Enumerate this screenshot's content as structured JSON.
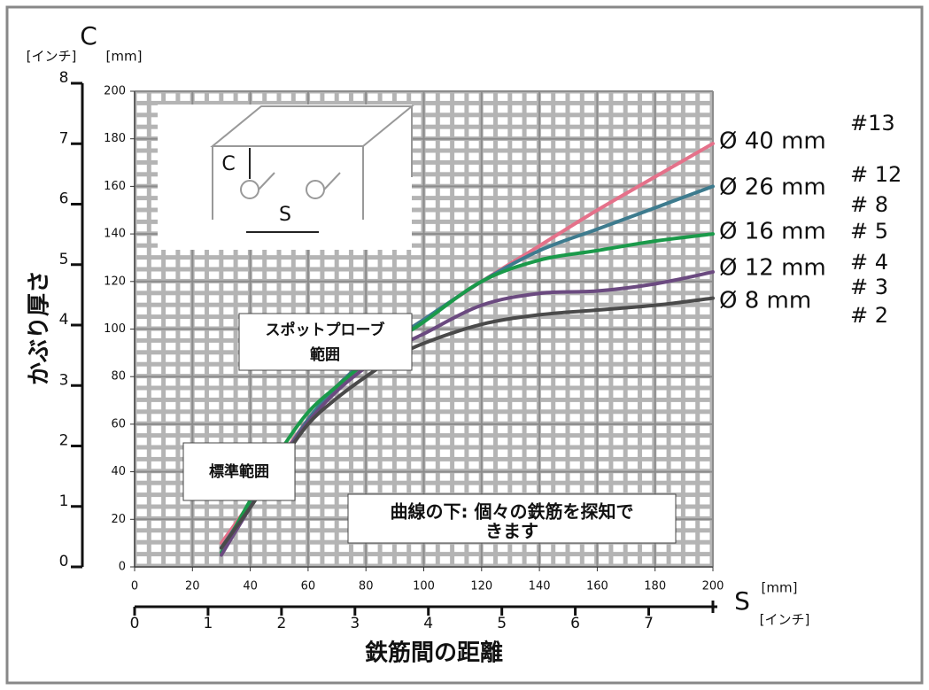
{
  "chart_data": {
    "type": "line",
    "y_label": "かぶり厚さ",
    "x_label": "鉄筋間の距離",
    "y_symbol": "C",
    "y_unit_inch": "[インチ]",
    "y_unit_mm": "[mm]",
    "x_symbol": "S",
    "x_unit_mm": "[mm]",
    "x_unit_inch": "[インチ]",
    "x": [
      30,
      40,
      50,
      60,
      70,
      80,
      90,
      100,
      120,
      140,
      160,
      180,
      200
    ],
    "series": [
      {
        "name": "Ø 40 mm",
        "color": "#e5718a",
        "values": [
          10,
          27,
          45,
          62,
          76,
          87,
          96,
          104,
          120,
          135,
          150,
          164,
          178
        ]
      },
      {
        "name": "Ø 26 mm",
        "color": "#3d7b8e",
        "values": [
          8,
          26,
          44,
          62,
          76,
          87,
          96,
          104,
          120,
          133,
          142,
          151,
          160
        ]
      },
      {
        "name": "Ø 16 mm",
        "color": "#1a9a4a",
        "values": [
          6,
          28,
          48,
          65,
          76,
          86,
          95,
          103,
          120,
          129,
          133,
          137,
          140
        ]
      },
      {
        "name": "Ø 12 mm",
        "color": "#6b4a80",
        "values": [
          5,
          25,
          44,
          61,
          74,
          84,
          92,
          98,
          110,
          115,
          116,
          119,
          124
        ]
      },
      {
        "name": "Ø 8 mm",
        "color": "#4a4a4a",
        "values": [
          8,
          25,
          43,
          60,
          71,
          80,
          88,
          94,
          102,
          106,
          108,
          110,
          113
        ]
      }
    ],
    "rebar_numbers": [
      "#13",
      "# 12",
      "# 8",
      "# 5",
      "# 4",
      "# 3",
      "# 2"
    ],
    "xlim": [
      0,
      200
    ],
    "xticks": [
      0,
      20,
      40,
      60,
      80,
      100,
      120,
      140,
      160,
      180,
      200
    ],
    "ylim": [
      0,
      200
    ],
    "yticks": [
      0,
      20,
      40,
      60,
      80,
      100,
      120,
      140,
      160,
      180,
      200
    ],
    "x2lim": [
      0,
      7.874
    ],
    "x2ticks": [
      0,
      1,
      2,
      3,
      4,
      5,
      6,
      7
    ],
    "y2lim": [
      0,
      8
    ],
    "y2ticks": [
      0,
      1,
      2,
      3,
      4,
      5,
      6,
      7,
      8
    ],
    "grid": true,
    "inset_labels": [
      "C",
      "S"
    ],
    "annotations": [
      {
        "lines": [
          "スポットプローブ",
          "範囲"
        ]
      },
      {
        "lines": [
          "標準範囲"
        ]
      },
      {
        "lines": [
          "曲線の下: 個々の鉄筋を探知で",
          "きます"
        ]
      }
    ]
  }
}
